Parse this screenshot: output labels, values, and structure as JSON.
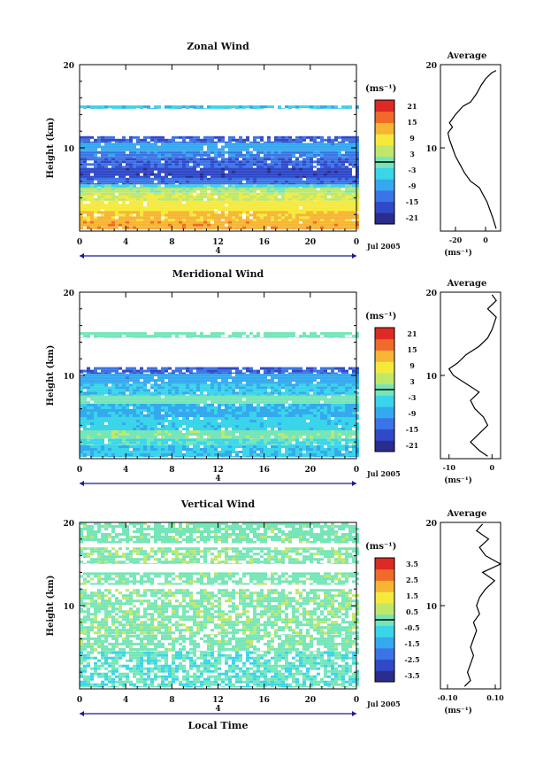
{
  "panels": [
    {
      "title": "Zonal Wind",
      "ylabel": "Height (km)",
      "yticks": [
        "20",
        "10"
      ],
      "xticks": [
        "0",
        "4",
        "8",
        "12",
        "16",
        "20",
        "0"
      ],
      "day_label": "4",
      "date_label": "Jul 2005",
      "unit_label": "(ms⁻¹)",
      "colorbar_ticks": [
        "21",
        "15",
        "9",
        "3",
        "-3",
        "-9",
        "-15",
        "-21"
      ],
      "avg_title": "Average",
      "avg_xticks": [
        "-20",
        "0"
      ],
      "avg_xlabel": "(ms⁻¹)"
    },
    {
      "title": "Meridional Wind",
      "ylabel": "Height (km)",
      "yticks": [
        "20",
        "10"
      ],
      "xticks": [
        "0",
        "4",
        "8",
        "12",
        "16",
        "20",
        "0"
      ],
      "day_label": "4",
      "date_label": "Jul 2005",
      "unit_label": "(ms⁻¹)",
      "colorbar_ticks": [
        "21",
        "15",
        "9",
        "3",
        "-3",
        "-9",
        "-15",
        "-21"
      ],
      "avg_title": "Average",
      "avg_xticks": [
        "-10",
        "0"
      ],
      "avg_xlabel": "(ms⁻¹)"
    },
    {
      "title": "Vertical Wind",
      "ylabel": "Height (km)",
      "yticks": [
        "20",
        "10"
      ],
      "xticks": [
        "0",
        "4",
        "8",
        "12",
        "16",
        "20",
        "0"
      ],
      "day_label": "4",
      "date_label": "Jul 2005",
      "unit_label": "(ms⁻¹)",
      "colorbar_ticks": [
        "3.5",
        "2.5",
        "1.5",
        "0.5",
        "-0.5",
        "-1.5",
        "-2.5",
        "-3.5"
      ],
      "avg_title": "Average",
      "avg_xticks": [
        "-0.10",
        "0.10"
      ],
      "avg_xlabel": "(ms⁻¹)"
    }
  ],
  "xlabel": "Local Time",
  "colormap": [
    "#2a2d8c",
    "#3049c9",
    "#3a74e6",
    "#35a9ef",
    "#3ad5e8",
    "#76e6b8",
    "#bfe86a",
    "#f5ea3c",
    "#f7b534",
    "#f06a2a",
    "#de2a24"
  ],
  "chart_data": [
    {
      "type": "heatmap",
      "title": "Zonal Wind",
      "xlabel": "",
      "ylabel": "Height (km)",
      "x_range_hours": [
        0,
        24
      ],
      "y_range_km": [
        0,
        20
      ],
      "color_range": [
        -24,
        24
      ],
      "layers": [
        {
          "z_km": [
            0.2,
            1.2
          ],
          "value": 14
        },
        {
          "z_km": [
            1.2,
            2.4
          ],
          "value": 12
        },
        {
          "z_km": [
            2.4,
            3.6
          ],
          "value": 9
        },
        {
          "z_km": [
            3.6,
            4.6
          ],
          "value": 6
        },
        {
          "z_km": [
            4.6,
            5.2
          ],
          "value": 3
        },
        {
          "z_km": [
            5.2,
            5.6
          ],
          "value": -3
        },
        {
          "z_km": [
            5.6,
            6.4
          ],
          "value": -14
        },
        {
          "z_km": [
            6.4,
            7.6
          ],
          "value": -18
        },
        {
          "z_km": [
            7.6,
            8.8
          ],
          "value": -15
        },
        {
          "z_km": [
            8.8,
            9.6
          ],
          "value": -12
        },
        {
          "z_km": [
            9.6,
            10.6
          ],
          "value": -9
        },
        {
          "z_km": [
            10.6,
            11.4
          ],
          "value": -15
        },
        {
          "z_km": [
            14.7,
            15.1
          ],
          "value": -6
        }
      ],
      "average_profile": {
        "x_range": [
          -30,
          10
        ],
        "points": [
          [
            7,
            0.3
          ],
          [
            5,
            1.5
          ],
          [
            3,
            2.5
          ],
          [
            1,
            3.5
          ],
          [
            -2,
            4.5
          ],
          [
            -4,
            5.2
          ],
          [
            -10,
            6
          ],
          [
            -14,
            7
          ],
          [
            -17,
            8
          ],
          [
            -20,
            9
          ],
          [
            -22,
            10
          ],
          [
            -24,
            11
          ],
          [
            -25,
            11.8
          ],
          [
            -22,
            12.5
          ],
          [
            -24,
            13
          ],
          [
            -20,
            14
          ],
          [
            -15,
            15
          ],
          [
            -10,
            15.5
          ],
          [
            -6,
            16.5
          ],
          [
            -3,
            17.5
          ],
          [
            0,
            18.3
          ],
          [
            4,
            19
          ],
          [
            7,
            19.3
          ]
        ]
      }
    },
    {
      "type": "heatmap",
      "title": "Meridional Wind",
      "xlabel": "",
      "ylabel": "Height (km)",
      "x_range_hours": [
        0,
        24
      ],
      "y_range_km": [
        0,
        20
      ],
      "color_range": [
        -24,
        24
      ],
      "layers": [
        {
          "z_km": [
            0.2,
            1.6
          ],
          "value": -6
        },
        {
          "z_km": [
            1.6,
            2.4
          ],
          "value": -3
        },
        {
          "z_km": [
            2.4,
            3.4
          ],
          "value": 1
        },
        {
          "z_km": [
            3.4,
            5.0
          ],
          "value": -5
        },
        {
          "z_km": [
            5.0,
            6.6
          ],
          "value": -7
        },
        {
          "z_km": [
            6.6,
            7.6
          ],
          "value": 0
        },
        {
          "z_km": [
            7.6,
            9.0
          ],
          "value": -6
        },
        {
          "z_km": [
            9.0,
            10.2
          ],
          "value": -9
        },
        {
          "z_km": [
            10.2,
            11.0
          ],
          "value": -15
        },
        {
          "z_km": [
            14.5,
            15.2
          ],
          "value": 0
        }
      ],
      "average_profile": {
        "x_range": [
          -12,
          2
        ],
        "points": [
          [
            -1,
            0.3
          ],
          [
            -3,
            1
          ],
          [
            -5,
            2
          ],
          [
            -3,
            3
          ],
          [
            -1,
            4
          ],
          [
            -2,
            5
          ],
          [
            -4,
            6
          ],
          [
            -5,
            7
          ],
          [
            -3,
            8
          ],
          [
            -6,
            9
          ],
          [
            -9,
            10
          ],
          [
            -10,
            10.8
          ],
          [
            -8,
            11.5
          ],
          [
            -6,
            12.5
          ],
          [
            -3,
            13.5
          ],
          [
            -1,
            14.5
          ],
          [
            0,
            15.5
          ],
          [
            1,
            17
          ],
          [
            -1,
            18
          ],
          [
            1,
            19
          ],
          [
            0,
            19.7
          ]
        ]
      }
    },
    {
      "type": "heatmap",
      "title": "Vertical Wind",
      "xlabel": "Local Time",
      "ylabel": "Height (km)",
      "x_range_hours": [
        0,
        24
      ],
      "y_range_km": [
        0,
        20
      ],
      "color_range": [
        -4,
        4
      ],
      "layers": [
        {
          "z_km": [
            0.2,
            4.5
          ],
          "value": -0.3
        },
        {
          "z_km": [
            4.5,
            6.5
          ],
          "value": 0.1
        },
        {
          "z_km": [
            6.5,
            12.0
          ],
          "value": 0.2
        },
        {
          "z_km": [
            12.5,
            14.0
          ],
          "value": 0.1
        },
        {
          "z_km": [
            15.0,
            17.0
          ],
          "value": 0.2
        },
        {
          "z_km": [
            17.5,
            20.0
          ],
          "value": 0.1
        }
      ],
      "average_profile": {
        "x_range": [
          -0.1,
          0.1
        ],
        "points": [
          [
            -0.02,
            0.3
          ],
          [
            0.0,
            1
          ],
          [
            -0.01,
            2
          ],
          [
            0.0,
            3
          ],
          [
            0.01,
            4
          ],
          [
            0.0,
            5
          ],
          [
            0.01,
            6
          ],
          [
            0.02,
            7
          ],
          [
            0.01,
            8
          ],
          [
            0.03,
            9
          ],
          [
            0.02,
            10
          ],
          [
            0.03,
            11
          ],
          [
            0.05,
            12
          ],
          [
            0.08,
            13
          ],
          [
            0.04,
            14
          ],
          [
            0.1,
            15
          ],
          [
            0.05,
            16
          ],
          [
            0.03,
            17
          ],
          [
            0.06,
            18
          ],
          [
            0.02,
            19
          ],
          [
            0.04,
            19.8
          ]
        ]
      }
    }
  ]
}
